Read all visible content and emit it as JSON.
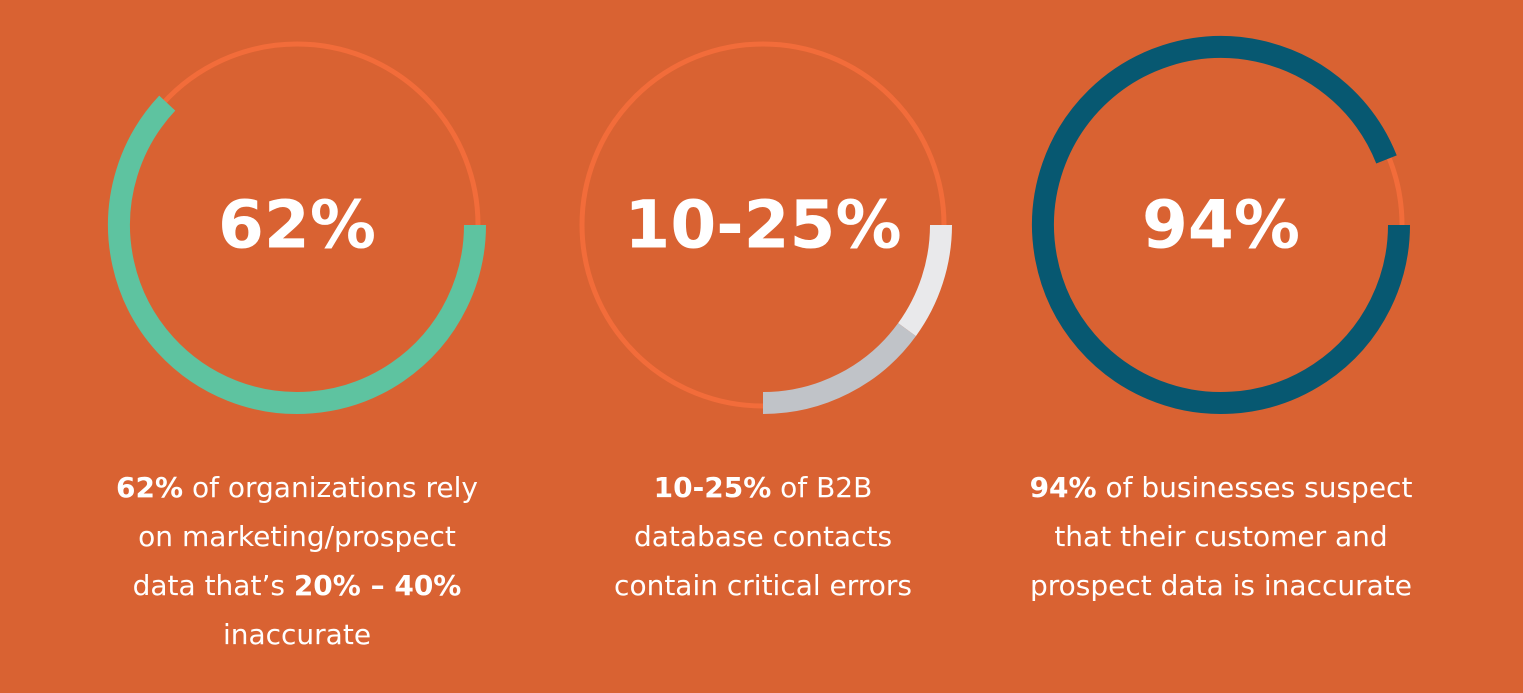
{
  "panels": [
    {
      "headline": "62%",
      "value": 62,
      "arc_colors": [
        "#5ec3a0"
      ],
      "caption": [
        [
          {
            "text": "62%",
            "bold": true
          },
          {
            "text": " of organizations rely",
            "bold": false
          }
        ],
        [
          {
            "text": "on marketing/prospect",
            "bold": false
          }
        ],
        [
          {
            "text": "data that’s ",
            "bold": false
          },
          {
            "text": "20% – 40%",
            "bold": true
          }
        ],
        [
          {
            "text": "inaccurate",
            "bold": false
          }
        ]
      ]
    },
    {
      "headline": "10-25%",
      "range": [
        10,
        25
      ],
      "arc_colors": [
        "#e9e9eb",
        "#c0c3c8"
      ],
      "caption": [
        [
          {
            "text": "10-25%",
            "bold": true
          },
          {
            "text": " of B2B",
            "bold": false
          }
        ],
        [
          {
            "text": "database contacts",
            "bold": false
          }
        ],
        [
          {
            "text": "contain critical errors",
            "bold": false
          }
        ]
      ]
    },
    {
      "headline": "94%",
      "value": 94,
      "arc_colors": [
        "#075871"
      ],
      "caption": [
        [
          {
            "text": "94%",
            "bold": true
          },
          {
            "text": " of businesses suspect",
            "bold": false
          }
        ],
        [
          {
            "text": "that their customer and",
            "bold": false
          }
        ],
        [
          {
            "text": "prospect data is inaccurate",
            "bold": false
          }
        ]
      ]
    }
  ]
}
